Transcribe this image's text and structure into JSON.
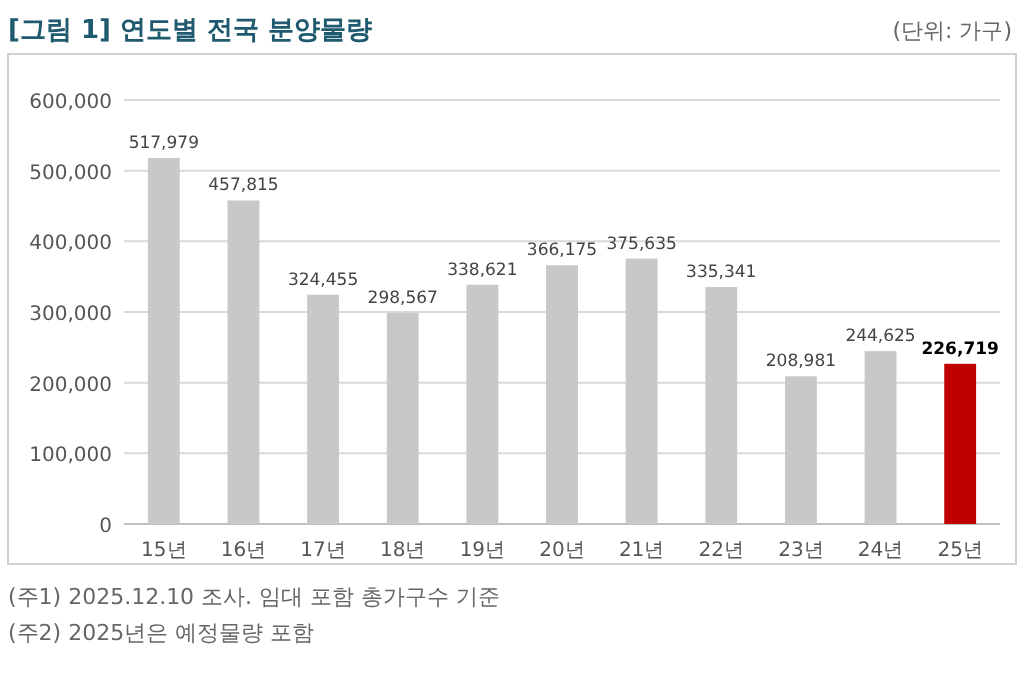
{
  "chart_data": {
    "type": "bar",
    "title": "[그림 1] 연도별 전국 분양물량",
    "subtitle": "(단위: 가구)",
    "categories": [
      "15년",
      "16년",
      "17년",
      "18년",
      "19년",
      "20년",
      "21년",
      "22년",
      "23년",
      "24년",
      "25년"
    ],
    "values": [
      517979,
      457815,
      324455,
      298567,
      338621,
      366175,
      375635,
      335341,
      208981,
      244625,
      226719
    ],
    "colors": [
      "#c8c8c8",
      "#c8c8c8",
      "#c8c8c8",
      "#c8c8c8",
      "#c8c8c8",
      "#c8c8c8",
      "#c8c8c8",
      "#c8c8c8",
      "#c8c8c8",
      "#c8c8c8",
      "#c00000"
    ],
    "ylim": [
      0,
      600000
    ],
    "yticks": [
      {
        "value": 0,
        "label": "0"
      },
      {
        "value": 100000,
        "label": "100,000"
      },
      {
        "value": 200000,
        "label": "200,000"
      },
      {
        "value": 300000,
        "label": "300,000"
      },
      {
        "value": 400000,
        "label": "400,000"
      },
      {
        "value": 500000,
        "label": "500,000"
      },
      {
        "value": 600000,
        "label": "600,000"
      }
    ],
    "value_labels": [
      "517,979",
      "457,815",
      "324,455",
      "298,567",
      "338,621",
      "366,175",
      "375,635",
      "335,341",
      "208,981",
      "244,625",
      "226,719"
    ],
    "grid": "y",
    "annotations": [
      "(주1) 2025.12.10 조사. 임대 포함 총가구수 기준",
      "(주2) 2025년은 예정물량 포함"
    ]
  }
}
